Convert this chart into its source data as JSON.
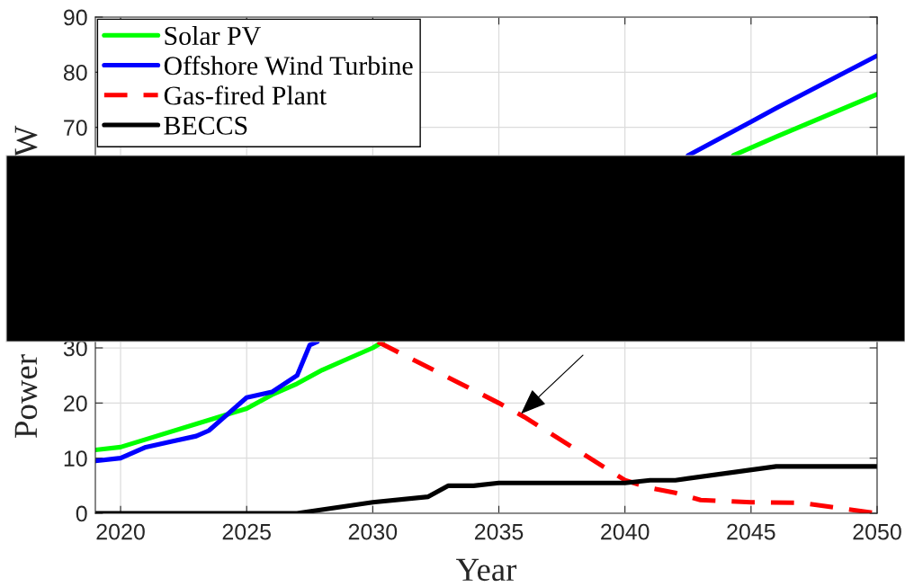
{
  "chart_data": {
    "type": "line",
    "xlabel": "Year",
    "ylabel": "Power",
    "annotations": [
      "W"
    ],
    "xlim": [
      2019,
      2050
    ],
    "xticks": [
      2020,
      2025,
      2030,
      2035,
      2040,
      2045,
      2050
    ],
    "ylim": [
      0,
      90
    ],
    "yticks": [
      0,
      10,
      20,
      30,
      70,
      80,
      90
    ],
    "grid": true,
    "legend": "top left",
    "line_style": "solid",
    "series": [
      {
        "name": "Solar PV",
        "color": "#00ff00",
        "x": [
          2019,
          2020,
          2025,
          2026,
          2027,
          2028,
          2029,
          2030,
          2030.4,
          2037,
          2044.3,
          2046,
          2050
        ],
        "values": [
          11.5,
          12,
          19,
          21.5,
          23.5,
          26,
          28,
          30,
          31.1,
          null,
          64.9,
          68.3,
          76
        ]
      },
      {
        "name": "Offshore Wind Turbine",
        "color": "#0000ff",
        "x": [
          2019,
          2020,
          2021,
          2022,
          2023,
          2023.5,
          2025,
          2026,
          2027,
          2027.5,
          2027.8,
          2035,
          2042.5,
          2045,
          2046,
          2050
        ],
        "values": [
          9.5,
          10,
          12,
          13,
          14,
          15,
          21,
          22,
          25,
          30.5,
          31.1,
          null,
          64.9,
          71,
          73.5,
          83
        ]
      },
      {
        "name": "Gas-fired Plant",
        "color": "#ff0000",
        "line_style": "dashed",
        "x": [
          2030.2,
          2035,
          2036,
          2040,
          2041,
          2042,
          2043,
          2044,
          2045,
          2047,
          2050
        ],
        "values": [
          31.1,
          20,
          17.5,
          6,
          4.6,
          3.7,
          2.4,
          2.2,
          2,
          1.9,
          0
        ]
      },
      {
        "name": "BECCS",
        "color": "#000000",
        "x": [
          2019,
          2027,
          2030,
          2032.2,
          2033,
          2034,
          2035,
          2040,
          2041,
          2042,
          2046,
          2050
        ],
        "values": [
          0,
          0,
          2,
          3,
          5,
          5,
          5.5,
          5.5,
          6,
          6,
          8.5,
          8.5
        ]
      }
    ]
  }
}
